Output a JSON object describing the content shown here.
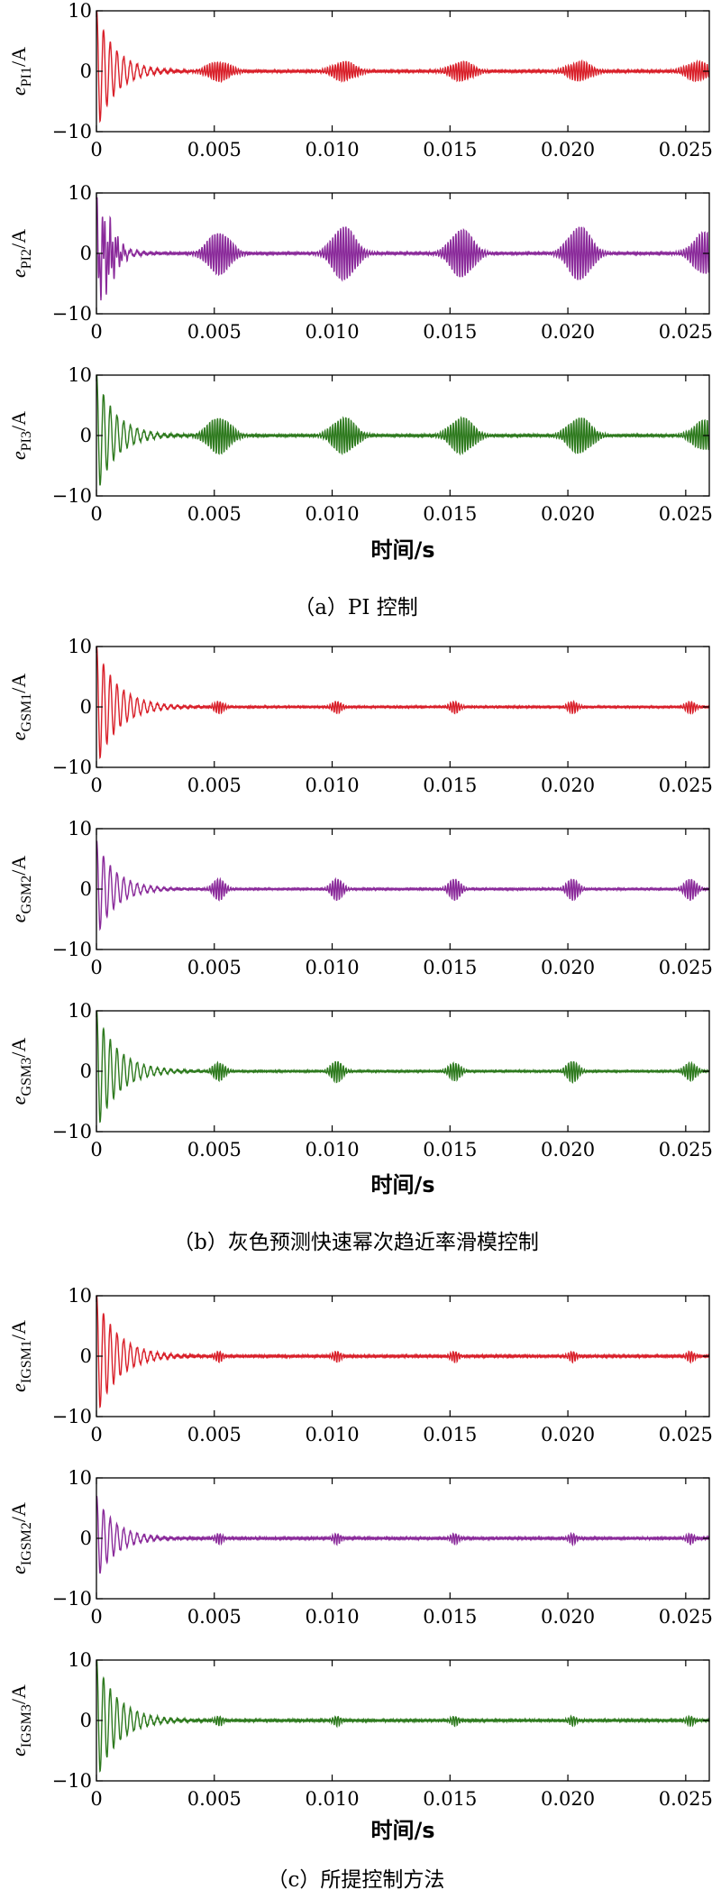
{
  "chart_data": [
    {
      "type": "line",
      "xlim": [
        0,
        0.026
      ],
      "ylim": [
        -10,
        10
      ],
      "xticks": [
        "0",
        "0.005",
        "0.010",
        "0.015",
        "0.020",
        "0.025"
      ],
      "yticks": [
        "10",
        "0",
        "−10"
      ],
      "ylabel_base": "e",
      "ylabel_sub": "PI1",
      "ylabel_unit": "/A",
      "color": "#d9202a",
      "series": [
        {
          "startup_peak": 10,
          "startup_decay_s": 0.0008,
          "ripple_amp": 0.15,
          "bursts": [
            [
              0.0052,
              1.6
            ],
            [
              0.0105,
              1.6
            ],
            [
              0.0155,
              1.6
            ],
            [
              0.0205,
              1.6
            ],
            [
              0.0255,
              1.6
            ]
          ],
          "burst_width_s": 0.0012
        }
      ]
    },
    {
      "type": "line",
      "xlim": [
        0,
        0.026
      ],
      "ylim": [
        -10,
        10
      ],
      "xticks": [
        "0",
        "0.005",
        "0.010",
        "0.015",
        "0.020",
        "0.025"
      ],
      "yticks": [
        "10",
        "0",
        "−10"
      ],
      "ylabel_base": "e",
      "ylabel_sub": "PI2",
      "ylabel_unit": "/A",
      "color": "#8a2a9a",
      "series": [
        {
          "startup_peak": 6,
          "startup_decay_s": 0.0006,
          "ripple_amp": 0.15,
          "bursts": [
            [
              0.0003,
              4.5
            ],
            [
              0.0052,
              3.5
            ],
            [
              0.0105,
              4.5
            ],
            [
              0.0155,
              4.0
            ],
            [
              0.0205,
              4.5
            ],
            [
              0.0258,
              3.5
            ]
          ],
          "burst_width_s": 0.0012
        }
      ]
    },
    {
      "type": "line",
      "xlim": [
        0,
        0.026
      ],
      "ylim": [
        -10,
        10
      ],
      "xticks": [
        "0",
        "0.005",
        "0.010",
        "0.015",
        "0.020",
        "0.025"
      ],
      "yticks": [
        "10",
        "0",
        "−10"
      ],
      "ylabel_base": "e",
      "ylabel_sub": "PI3",
      "ylabel_unit": "/A",
      "color": "#2e7a1e",
      "series": [
        {
          "startup_peak": 10,
          "startup_decay_s": 0.0008,
          "ripple_amp": 0.15,
          "bursts": [
            [
              0.0052,
              3.0
            ],
            [
              0.0105,
              3.0
            ],
            [
              0.0155,
              3.0
            ],
            [
              0.0205,
              3.0
            ],
            [
              0.0258,
              2.5
            ]
          ],
          "burst_width_s": 0.0012
        }
      ]
    },
    {
      "type": "line",
      "xlim": [
        0,
        0.026
      ],
      "ylim": [
        -10,
        10
      ],
      "xticks": [
        "0",
        "0.005",
        "0.010",
        "0.015",
        "0.020",
        "0.025"
      ],
      "yticks": [
        "10",
        "0",
        "−10"
      ],
      "ylabel_base": "e",
      "ylabel_sub": "GSM1",
      "ylabel_unit": "/A",
      "color": "#d9202a",
      "series": [
        {
          "startup_peak": 10,
          "startup_decay_s": 0.0009,
          "ripple_amp": 0.12,
          "bursts": [
            [
              0.0052,
              1.0
            ],
            [
              0.0102,
              1.0
            ],
            [
              0.0152,
              1.0
            ],
            [
              0.0202,
              1.0
            ],
            [
              0.0252,
              1.0
            ]
          ],
          "burst_width_s": 0.0005
        }
      ]
    },
    {
      "type": "line",
      "xlim": [
        0,
        0.026
      ],
      "ylim": [
        -10,
        10
      ],
      "xticks": [
        "0",
        "0.005",
        "0.010",
        "0.015",
        "0.020",
        "0.025"
      ],
      "yticks": [
        "10",
        "0",
        "−10"
      ],
      "ylabel_base": "e",
      "ylabel_sub": "GSM2",
      "ylabel_unit": "/A",
      "color": "#8a2a9a",
      "series": [
        {
          "startup_peak": 8,
          "startup_decay_s": 0.0008,
          "ripple_amp": 0.12,
          "bursts": [
            [
              0.0052,
              1.8
            ],
            [
              0.0102,
              1.8
            ],
            [
              0.0152,
              1.8
            ],
            [
              0.0202,
              1.8
            ],
            [
              0.0252,
              1.8
            ]
          ],
          "burst_width_s": 0.0006
        }
      ]
    },
    {
      "type": "line",
      "xlim": [
        0,
        0.026
      ],
      "ylim": [
        -10,
        10
      ],
      "xticks": [
        "0",
        "0.005",
        "0.010",
        "0.015",
        "0.020",
        "0.025"
      ],
      "yticks": [
        "10",
        "0",
        "−10"
      ],
      "ylabel_base": "e",
      "ylabel_sub": "GSM3",
      "ylabel_unit": "/A",
      "color": "#2e7a1e",
      "series": [
        {
          "startup_peak": 10,
          "startup_decay_s": 0.0009,
          "ripple_amp": 0.12,
          "bursts": [
            [
              0.0052,
              1.5
            ],
            [
              0.0102,
              1.8
            ],
            [
              0.0152,
              1.5
            ],
            [
              0.0202,
              1.8
            ],
            [
              0.0252,
              1.5
            ]
          ],
          "burst_width_s": 0.0006
        }
      ]
    },
    {
      "type": "line",
      "xlim": [
        0,
        0.026
      ],
      "ylim": [
        -10,
        10
      ],
      "xticks": [
        "0",
        "0.005",
        "0.010",
        "0.015",
        "0.020",
        "0.025"
      ],
      "yticks": [
        "10",
        "0",
        "−10"
      ],
      "ylabel_base": "e",
      "ylabel_sub": "IGSM1",
      "ylabel_unit": "/A",
      "color": "#d9202a",
      "series": [
        {
          "startup_peak": 10,
          "startup_decay_s": 0.0009,
          "ripple_amp": 0.15,
          "bursts": [
            [
              0.0052,
              0.9
            ],
            [
              0.0102,
              0.9
            ],
            [
              0.0152,
              0.9
            ],
            [
              0.0202,
              0.9
            ],
            [
              0.0252,
              0.9
            ]
          ],
          "burst_width_s": 0.0004
        }
      ]
    },
    {
      "type": "line",
      "xlim": [
        0,
        0.026
      ],
      "ylim": [
        -10,
        10
      ],
      "xticks": [
        "0",
        "0.005",
        "0.010",
        "0.015",
        "0.020",
        "0.025"
      ],
      "yticks": [
        "10",
        "0",
        "−10"
      ],
      "ylabel_base": "e",
      "ylabel_sub": "IGSM2",
      "ylabel_unit": "/A",
      "color": "#8a2a9a",
      "series": [
        {
          "startup_peak": 7,
          "startup_decay_s": 0.0008,
          "ripple_amp": 0.15,
          "bursts": [
            [
              0.0052,
              0.9
            ],
            [
              0.0102,
              0.9
            ],
            [
              0.0152,
              0.9
            ],
            [
              0.0202,
              0.9
            ],
            [
              0.0252,
              0.9
            ]
          ],
          "burst_width_s": 0.0004
        }
      ]
    },
    {
      "type": "line",
      "xlim": [
        0,
        0.026
      ],
      "ylim": [
        -10,
        10
      ],
      "xticks": [
        "0",
        "0.005",
        "0.010",
        "0.015",
        "0.020",
        "0.025"
      ],
      "yticks": [
        "10",
        "0",
        "−10"
      ],
      "ylabel_base": "e",
      "ylabel_sub": "IGSM3",
      "ylabel_unit": "/A",
      "color": "#2e7a1e",
      "series": [
        {
          "startup_peak": 10,
          "startup_decay_s": 0.0009,
          "ripple_amp": 0.15,
          "bursts": [
            [
              0.0052,
              0.8
            ],
            [
              0.0102,
              0.8
            ],
            [
              0.0152,
              0.8
            ],
            [
              0.0202,
              0.8
            ],
            [
              0.0252,
              0.8
            ]
          ],
          "burst_width_s": 0.0004
        }
      ]
    }
  ],
  "groups": [
    {
      "xlabel": "时间/s",
      "caption": "（a）PI 控制"
    },
    {
      "xlabel": "时间/s",
      "caption": "（b）灰色预测快速幂次趋近率滑模控制"
    },
    {
      "xlabel": "时间/s",
      "caption": "（c）所提控制方法"
    }
  ]
}
